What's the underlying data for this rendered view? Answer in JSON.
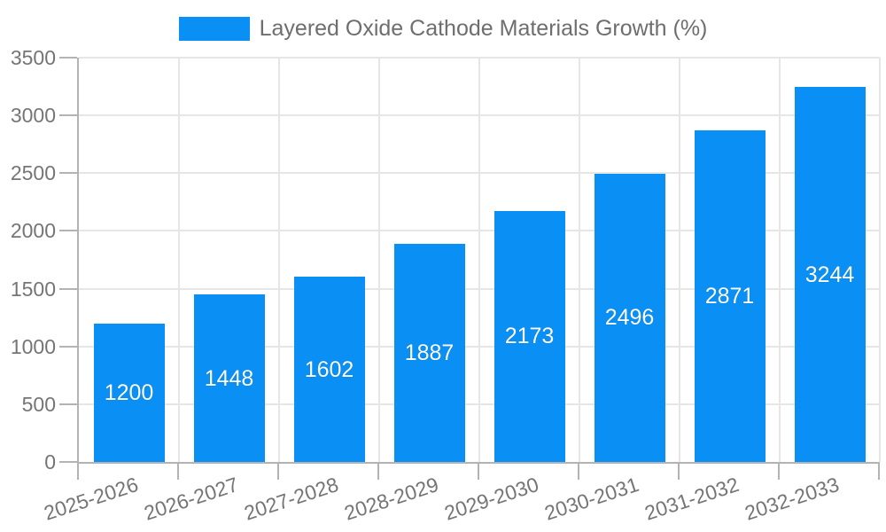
{
  "chart_data": {
    "type": "bar",
    "title": "Layered Oxide Cathode Materials Growth (%)",
    "legend_entries": [
      "Layered Oxide Cathode Materials Growth (%)"
    ],
    "legend_position": "top-center",
    "categories": [
      "2025-2026",
      "2026-2027",
      "2027-2028",
      "2028-2029",
      "2029-2030",
      "2030-2031",
      "2031-2032",
      "2032-2033"
    ],
    "values": [
      1200,
      1448,
      1602,
      1887,
      2173,
      2496,
      2871,
      3244
    ],
    "xlabel": "",
    "ylabel": "",
    "ylim": [
      0,
      3500
    ],
    "yticks": [
      0,
      500,
      1000,
      1500,
      2000,
      2500,
      3000,
      3500
    ],
    "grid": true,
    "x_label_rotation_deg": -18,
    "value_label_style": "white-centered-inside-bar"
  },
  "colors": {
    "bar": "#0a90f5",
    "grid": "#e6e6e6",
    "axis": "#b3b3b3",
    "tick_label": "#757575",
    "legend_text": "#6e6e6e",
    "value_label": "#ffffff",
    "background": "#ffffff"
  }
}
